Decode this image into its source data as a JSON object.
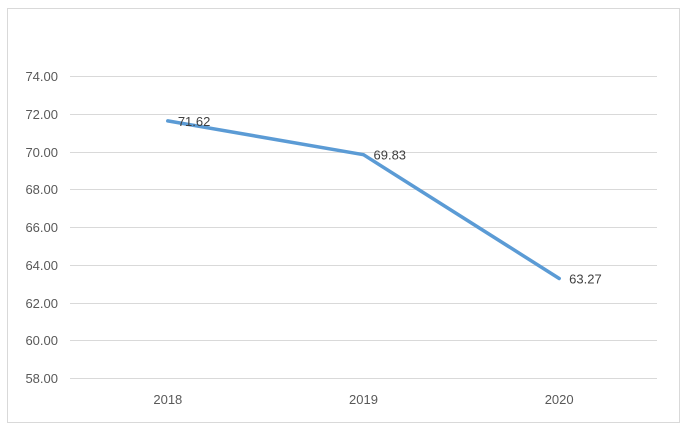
{
  "chart_data": {
    "type": "line",
    "title": "",
    "xlabel": "",
    "ylabel": "",
    "categories": [
      "2018",
      "2019",
      "2020"
    ],
    "series": [
      {
        "values": [
          71.62,
          69.83,
          63.27
        ],
        "color": "#5b9bd5",
        "data_labels": [
          "71.62",
          "69.83",
          "63.27"
        ]
      }
    ],
    "ylim": [
      58,
      74
    ],
    "y_ticks": [
      58,
      60,
      62,
      64,
      66,
      68,
      70,
      72,
      74
    ],
    "y_tick_labels": [
      "58.00",
      "60.00",
      "62.00",
      "64.00",
      "66.00",
      "68.00",
      "70.00",
      "72.00",
      "74.00"
    ],
    "grid": true,
    "legend": "none"
  }
}
